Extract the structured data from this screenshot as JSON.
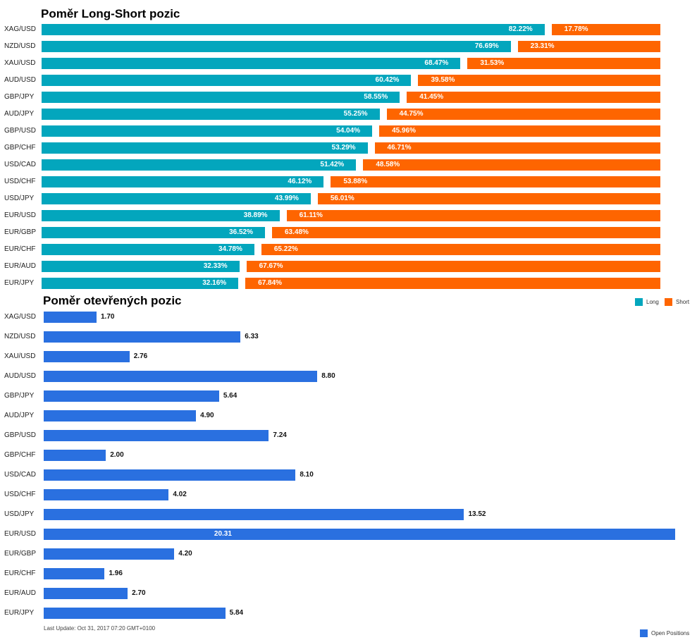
{
  "chart_data": [
    {
      "type": "bar",
      "orientation": "horizontal",
      "stacked": true,
      "title": "Poměr Long-Short pozic",
      "categories": [
        "XAG/USD",
        "NZD/USD",
        "XAU/USD",
        "AUD/USD",
        "GBP/JPY",
        "AUD/JPY",
        "GBP/USD",
        "GBP/CHF",
        "USD/CAD",
        "USD/CHF",
        "USD/JPY",
        "EUR/USD",
        "EUR/GBP",
        "EUR/CHF",
        "EUR/AUD",
        "EUR/JPY"
      ],
      "series": [
        {
          "name": "Long",
          "color": "#03a6bd",
          "labels": [
            "82.22%",
            "76.69%",
            "68.47%",
            "60.42%",
            "58.55%",
            "55.25%",
            "54.04%",
            "53.29%",
            "51.42%",
            "46.12%",
            "43.99%",
            "38.89%",
            "36.52%",
            "34.78%",
            "32.33%",
            "32.16%"
          ],
          "values": [
            82.22,
            76.69,
            68.47,
            60.42,
            58.55,
            55.25,
            54.04,
            53.29,
            51.42,
            46.12,
            43.99,
            38.89,
            36.52,
            34.78,
            32.33,
            32.16
          ]
        },
        {
          "name": "Short",
          "color": "#fe6500",
          "labels": [
            "17.78%",
            "23.31%",
            "31.53%",
            "39.58%",
            "41.45%",
            "44.75%",
            "45.96%",
            "46.71%",
            "48.58%",
            "53.88%",
            "56.01%",
            "61.11%",
            "63.48%",
            "65.22%",
            "67.67%",
            "67.84%"
          ],
          "values": [
            17.78,
            23.31,
            31.53,
            39.58,
            41.45,
            44.75,
            45.96,
            46.71,
            48.58,
            53.88,
            56.01,
            61.11,
            63.48,
            65.22,
            67.67,
            67.84
          ]
        }
      ],
      "xlim": [
        0,
        100
      ],
      "legend": "right"
    },
    {
      "type": "bar",
      "orientation": "horizontal",
      "title": "Poměr otevřených pozic",
      "categories": [
        "XAG/USD",
        "NZD/USD",
        "XAU/USD",
        "AUD/USD",
        "GBP/JPY",
        "AUD/JPY",
        "GBP/USD",
        "GBP/CHF",
        "USD/CAD",
        "USD/CHF",
        "USD/JPY",
        "EUR/USD",
        "EUR/GBP",
        "EUR/CHF",
        "EUR/AUD",
        "EUR/JPY"
      ],
      "series": [
        {
          "name": "Open Positions",
          "color": "#2a70e0",
          "labels": [
            "1.70",
            "6.33",
            "2.76",
            "8.80",
            "5.64",
            "4.90",
            "7.24",
            "2.00",
            "8.10",
            "4.02",
            "13.52",
            "20.31",
            "4.20",
            "1.96",
            "2.70",
            "5.84"
          ],
          "values": [
            1.7,
            6.33,
            2.76,
            8.8,
            5.64,
            4.9,
            7.24,
            2.0,
            8.1,
            4.02,
            13.52,
            20.31,
            4.2,
            1.96,
            2.7,
            5.84
          ]
        }
      ],
      "legend": "bottom-right"
    }
  ],
  "footer": {
    "last_update": "Last Update: Oct 31, 2017 07:20 GMT+0100"
  }
}
